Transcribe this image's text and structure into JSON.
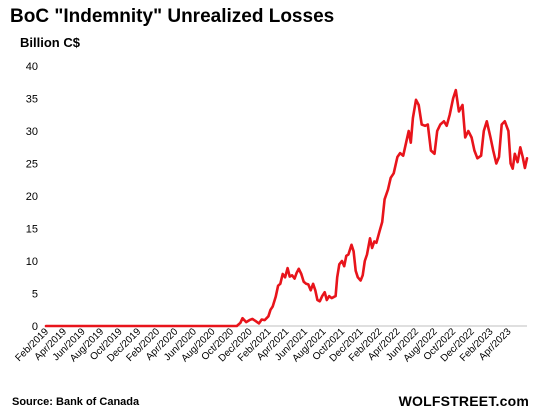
{
  "chart_data": {
    "type": "line",
    "title": "BoC \"Indemnity\" Unrealized Losses",
    "ylabel": "Billion C$",
    "xlabel": "",
    "ylim": [
      0,
      40
    ],
    "yticks": [
      0,
      5,
      10,
      15,
      20,
      25,
      30,
      35,
      40
    ],
    "xtick_labels": [
      "Feb/2019",
      "Apr/2019",
      "Jun/2019",
      "Aug/2019",
      "Oct/2019",
      "Dec/2019",
      "Feb/2020",
      "Apr/2020",
      "Jun/2020",
      "Aug/2020",
      "Oct/2020",
      "Dec/2020",
      "Feb/2021",
      "Apr/2021",
      "Jun/2021",
      "Aug/2021",
      "Oct/2021",
      "Dec/2021",
      "Feb/2022",
      "Apr/2022",
      "Jun/2022",
      "Aug/2022",
      "Oct/2022",
      "Dec/2022",
      "Feb/2023",
      "Apr/2023"
    ],
    "grid": false,
    "legend": "none",
    "series": [
      {
        "color": "#e8141b",
        "points": [
          [
            "2019-02-01",
            0
          ],
          [
            "2019-06-01",
            0
          ],
          [
            "2019-10-01",
            0
          ],
          [
            "2020-02-01",
            0
          ],
          [
            "2020-06-01",
            0
          ],
          [
            "2020-10-01",
            0
          ],
          [
            "2020-10-20",
            0
          ],
          [
            "2020-11-01",
            0.5
          ],
          [
            "2020-11-08",
            1.2
          ],
          [
            "2020-11-20",
            0.6
          ],
          [
            "2020-12-01",
            0.9
          ],
          [
            "2020-12-10",
            1.1
          ],
          [
            "2020-12-20",
            0.8
          ],
          [
            "2021-01-01",
            0.4
          ],
          [
            "2021-01-10",
            1.0
          ],
          [
            "2021-01-20",
            0.9
          ],
          [
            "2021-02-01",
            1.5
          ],
          [
            "2021-02-08",
            2.5
          ],
          [
            "2021-02-15",
            3.0
          ],
          [
            "2021-02-25",
            4.5
          ],
          [
            "2021-03-05",
            6.2
          ],
          [
            "2021-03-12",
            6.5
          ],
          [
            "2021-03-20",
            8.0
          ],
          [
            "2021-03-28",
            7.5
          ],
          [
            "2021-04-05",
            8.9
          ],
          [
            "2021-04-12",
            7.6
          ],
          [
            "2021-04-20",
            7.8
          ],
          [
            "2021-04-28",
            7.3
          ],
          [
            "2021-05-05",
            8.2
          ],
          [
            "2021-05-12",
            8.8
          ],
          [
            "2021-05-20",
            8.0
          ],
          [
            "2021-05-28",
            6.8
          ],
          [
            "2021-06-05",
            6.5
          ],
          [
            "2021-06-12",
            6.4
          ],
          [
            "2021-06-20",
            5.5
          ],
          [
            "2021-06-28",
            6.5
          ],
          [
            "2021-07-05",
            5.5
          ],
          [
            "2021-07-12",
            4.0
          ],
          [
            "2021-07-20",
            3.8
          ],
          [
            "2021-07-28",
            4.6
          ],
          [
            "2021-08-05",
            5.2
          ],
          [
            "2021-08-12",
            4.0
          ],
          [
            "2021-08-20",
            4.6
          ],
          [
            "2021-08-28",
            4.3
          ],
          [
            "2021-09-05",
            4.5
          ],
          [
            "2021-09-10",
            4.6
          ],
          [
            "2021-09-15",
            7.5
          ],
          [
            "2021-09-22",
            9.5
          ],
          [
            "2021-10-01",
            10.0
          ],
          [
            "2021-10-08",
            9.2
          ],
          [
            "2021-10-15",
            10.8
          ],
          [
            "2021-10-22",
            11.0
          ],
          [
            "2021-11-01",
            12.5
          ],
          [
            "2021-11-08",
            11.5
          ],
          [
            "2021-11-15",
            8.5
          ],
          [
            "2021-11-22",
            7.5
          ],
          [
            "2021-12-01",
            7.0
          ],
          [
            "2021-12-08",
            7.8
          ],
          [
            "2021-12-15",
            10.0
          ],
          [
            "2021-12-22",
            11.0
          ],
          [
            "2022-01-01",
            13.5
          ],
          [
            "2022-01-08",
            12.0
          ],
          [
            "2022-01-15",
            13.0
          ],
          [
            "2022-01-22",
            12.8
          ],
          [
            "2022-02-01",
            14.5
          ],
          [
            "2022-02-10",
            16.0
          ],
          [
            "2022-02-18",
            19.5
          ],
          [
            "2022-03-01",
            21.0
          ],
          [
            "2022-03-10",
            22.8
          ],
          [
            "2022-03-20",
            23.5
          ],
          [
            "2022-04-01",
            26.0
          ],
          [
            "2022-04-10",
            26.6
          ],
          [
            "2022-04-20",
            26.2
          ],
          [
            "2022-05-01",
            28.5
          ],
          [
            "2022-05-08",
            30.0
          ],
          [
            "2022-05-15",
            28.2
          ],
          [
            "2022-05-22",
            32.0
          ],
          [
            "2022-06-01",
            34.8
          ],
          [
            "2022-06-10",
            34.0
          ],
          [
            "2022-06-20",
            31.0
          ],
          [
            "2022-07-01",
            30.8
          ],
          [
            "2022-07-10",
            31.0
          ],
          [
            "2022-07-20",
            27.0
          ],
          [
            "2022-08-01",
            26.5
          ],
          [
            "2022-08-10",
            30.0
          ],
          [
            "2022-08-20",
            31.0
          ],
          [
            "2022-09-01",
            31.5
          ],
          [
            "2022-09-10",
            30.8
          ],
          [
            "2022-09-20",
            32.5
          ],
          [
            "2022-10-01",
            35.0
          ],
          [
            "2022-10-10",
            36.3
          ],
          [
            "2022-10-20",
            33.0
          ],
          [
            "2022-11-01",
            34.0
          ],
          [
            "2022-11-10",
            29.0
          ],
          [
            "2022-11-20",
            30.0
          ],
          [
            "2022-12-01",
            29.0
          ],
          [
            "2022-12-10",
            27.0
          ],
          [
            "2022-12-20",
            25.8
          ],
          [
            "2023-01-01",
            26.2
          ],
          [
            "2023-01-10",
            30.0
          ],
          [
            "2023-01-20",
            31.5
          ],
          [
            "2023-02-01",
            29.0
          ],
          [
            "2023-02-10",
            27.0
          ],
          [
            "2023-02-20",
            25.0
          ],
          [
            "2023-03-01",
            26.0
          ],
          [
            "2023-03-10",
            31.0
          ],
          [
            "2023-03-20",
            31.5
          ],
          [
            "2023-04-01",
            30.0
          ],
          [
            "2023-04-08",
            25.0
          ],
          [
            "2023-04-15",
            24.2
          ],
          [
            "2023-04-22",
            26.5
          ],
          [
            "2023-05-01",
            25.2
          ],
          [
            "2023-05-10",
            27.5
          ],
          [
            "2023-05-18",
            26.0
          ],
          [
            "2023-05-25",
            24.3
          ],
          [
            "2023-06-01",
            25.8
          ]
        ]
      }
    ]
  },
  "footer": {
    "source": "Source: Bank of Canada",
    "brand": "WOLFSTREET.com"
  }
}
